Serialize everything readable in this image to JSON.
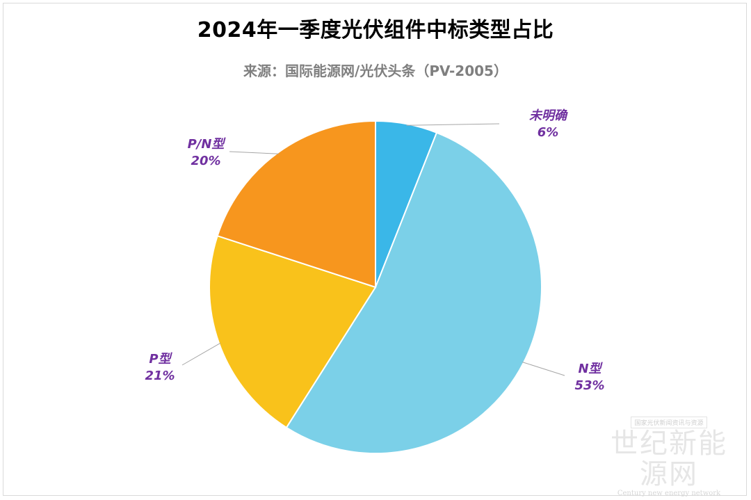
{
  "chart_data": {
    "type": "pie",
    "title": "2024年一季度光伏组件中标类型占比",
    "subtitle": "来源：国际能源网/光伏头条（PV-2005）",
    "slices": [
      {
        "name": "未明确",
        "value": 6,
        "label": "6%",
        "color": "#3ab7e8"
      },
      {
        "name": "N型",
        "value": 53,
        "label": "53%",
        "color": "#7bd0e8"
      },
      {
        "name": "P型",
        "value": 21,
        "label": "21%",
        "color": "#f9c21b"
      },
      {
        "name": "P/N型",
        "value": 20,
        "label": "20%",
        "color": "#f7961e"
      }
    ],
    "label_color": "#7030a0"
  },
  "watermark": {
    "tag": "国家光伏新闻资讯与资源",
    "main": "世纪新能源网",
    "sub": "Century new energy network"
  }
}
